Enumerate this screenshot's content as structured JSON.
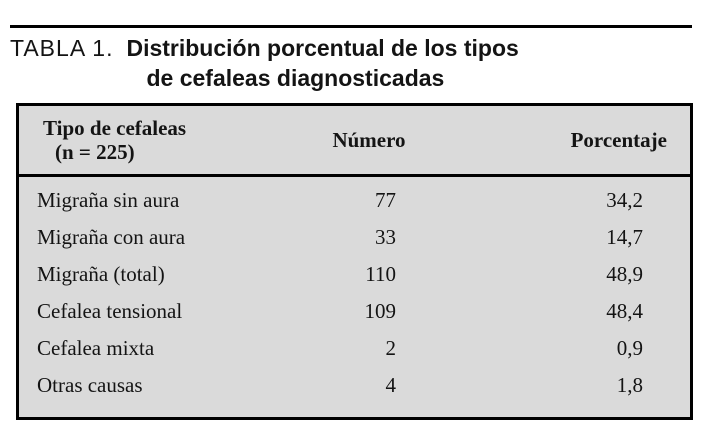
{
  "caption": {
    "label": "TABLA 1.",
    "line1": "Distribución porcentual de los tipos",
    "line2": "de cefaleas diagnosticadas"
  },
  "table": {
    "header": {
      "col1_line1": "Tipo de cefaleas",
      "col1_line2": "(n = 225)",
      "col2": "Número",
      "col3": "Porcentaje"
    },
    "rows": [
      {
        "tipo": "Migraña sin aura",
        "numero": "77",
        "porcentaje": "34,2"
      },
      {
        "tipo": "Migraña con aura",
        "numero": "33",
        "porcentaje": "14,7"
      },
      {
        "tipo": "Migraña (total)",
        "numero": "110",
        "porcentaje": "48,9"
      },
      {
        "tipo": "Cefalea tensional",
        "numero": "109",
        "porcentaje": "48,4"
      },
      {
        "tipo": "Cefalea mixta",
        "numero": "2",
        "porcentaje": "0,9"
      },
      {
        "tipo": "Otras causas",
        "numero": "4",
        "porcentaje": "1,8"
      }
    ]
  },
  "colors": {
    "table_background": "#dadada",
    "border": "#000000",
    "text": "#141414",
    "page_background": "#ffffff"
  },
  "chart_data": {
    "type": "table",
    "title": "TABLA 1. Distribución porcentual de los tipos de cefaleas diagnosticadas",
    "columns": [
      "Tipo de cefaleas (n = 225)",
      "Número",
      "Porcentaje"
    ],
    "rows": [
      [
        "Migraña sin aura",
        77,
        34.2
      ],
      [
        "Migraña con aura",
        33,
        14.7
      ],
      [
        "Migraña (total)",
        110,
        48.9
      ],
      [
        "Cefalea tensional",
        109,
        48.4
      ],
      [
        "Cefalea mixta",
        2,
        0.9
      ],
      [
        "Otras causas",
        4,
        1.8
      ]
    ],
    "total_n": 225
  }
}
